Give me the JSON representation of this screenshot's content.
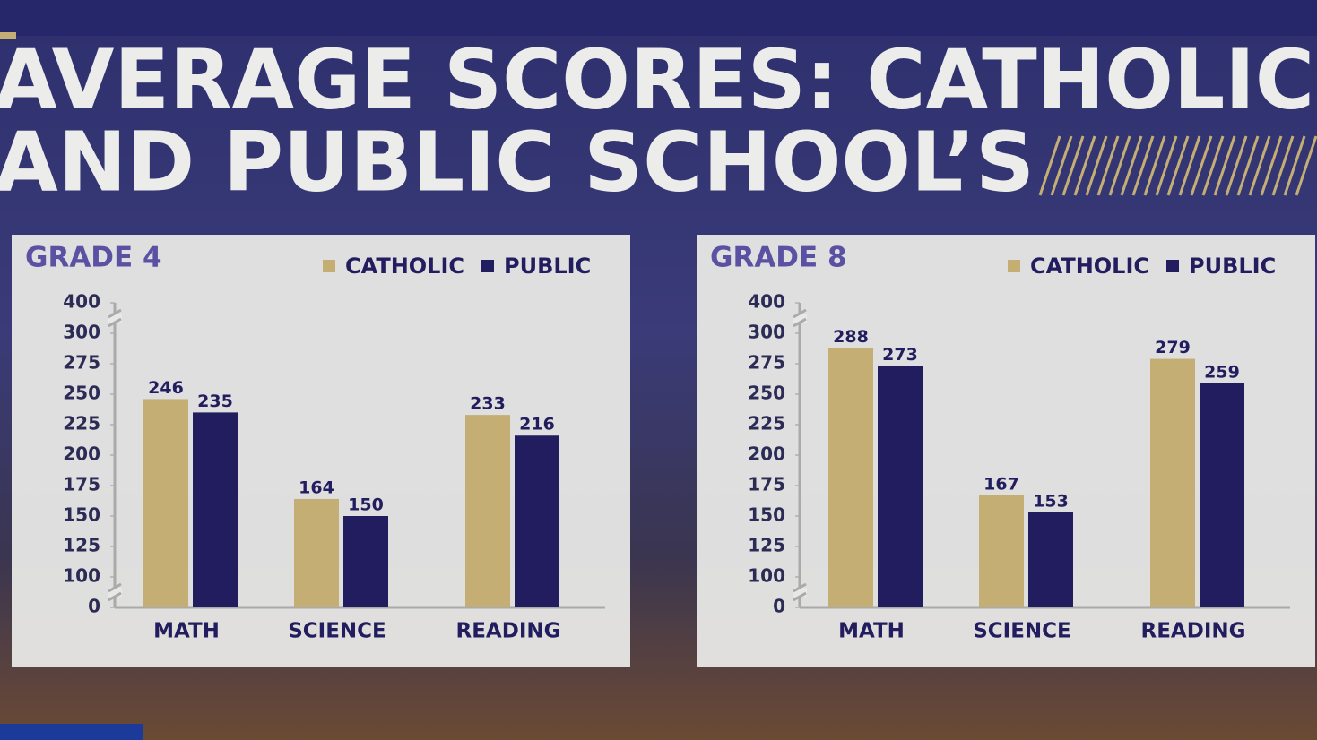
{
  "title": [
    "AVERAGE SCORES: CATHOLIC",
    "AND PUBLIC SCHOOL’S"
  ],
  "chart_data": [
    {
      "type": "bar",
      "title": "GRADE 4",
      "categories": [
        "MATH",
        "SCIENCE",
        "READING"
      ],
      "series": [
        {
          "name": "CATHOLIC",
          "color": "#c5ae74",
          "values": [
            246,
            164,
            233
          ]
        },
        {
          "name": "PUBLIC",
          "color": "#221d5e",
          "values": [
            235,
            150,
            216
          ]
        }
      ],
      "ylim": [
        0,
        400
      ],
      "yticks": [
        0,
        100,
        125,
        150,
        175,
        200,
        225,
        250,
        275,
        300,
        400
      ]
    },
    {
      "type": "bar",
      "title": "GRADE 8",
      "categories": [
        "MATH",
        "SCIENCE",
        "READING"
      ],
      "series": [
        {
          "name": "CATHOLIC",
          "color": "#c5ae74",
          "values": [
            288,
            167,
            279
          ]
        },
        {
          "name": "PUBLIC",
          "color": "#221d5e",
          "values": [
            273,
            153,
            259
          ]
        }
      ],
      "ylim": [
        0,
        400
      ],
      "yticks": [
        0,
        100,
        125,
        150,
        175,
        200,
        225,
        250,
        275,
        300,
        400
      ]
    }
  ]
}
